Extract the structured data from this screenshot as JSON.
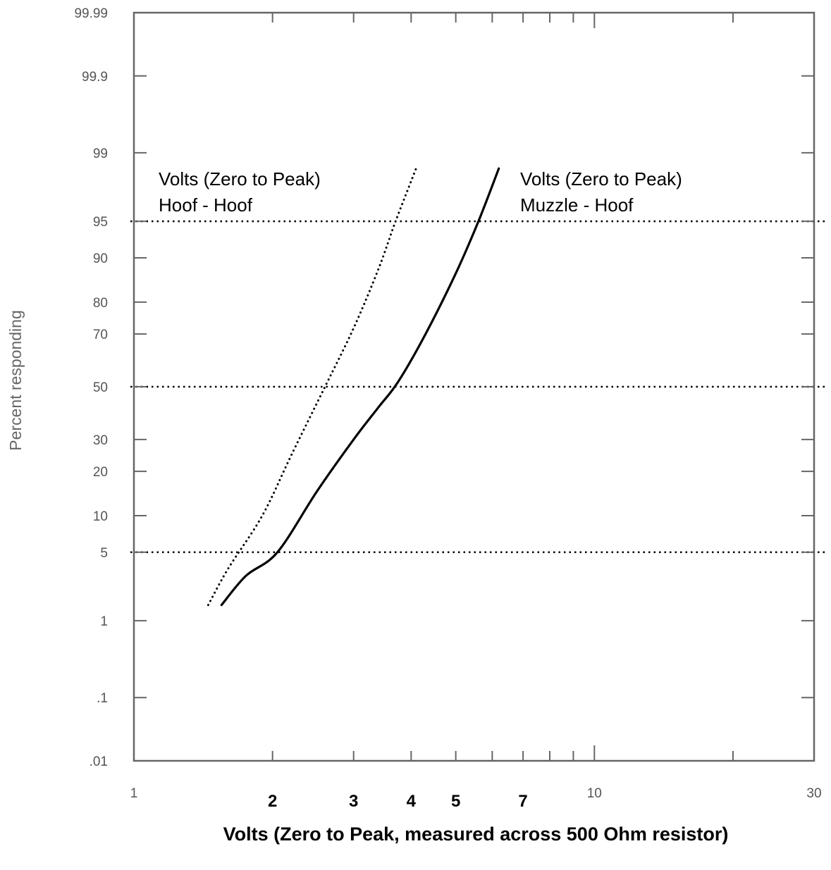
{
  "chart_data": {
    "type": "line",
    "xlabel": "Volts (Zero to Peak, measured across 500 Ohm resistor)",
    "ylabel": "Percent responding",
    "x_scale": "log",
    "y_scale": "probability",
    "xlim": [
      1,
      30
    ],
    "ylim": [
      0.01,
      99.99
    ],
    "x_ticks_outer": [
      "1",
      "10",
      "30"
    ],
    "x_ticks_bold": [
      "2",
      "3",
      "4",
      "5",
      "7"
    ],
    "y_ticks": [
      {
        "value": 0.01,
        "label": ".01"
      },
      {
        "value": 0.1,
        "label": ".1"
      },
      {
        "value": 1,
        "label": "1"
      },
      {
        "value": 5,
        "label": "5"
      },
      {
        "value": 10,
        "label": "10"
      },
      {
        "value": 20,
        "label": "20"
      },
      {
        "value": 30,
        "label": "30"
      },
      {
        "value": 50,
        "label": "50"
      },
      {
        "value": 70,
        "label": "70"
      },
      {
        "value": 80,
        "label": "80"
      },
      {
        "value": 90,
        "label": "90"
      },
      {
        "value": 95,
        "label": "95"
      },
      {
        "value": 99,
        "label": "99"
      },
      {
        "value": 99.9,
        "label": "99.9"
      },
      {
        "value": 99.99,
        "label": "99.99"
      }
    ],
    "reference_lines": [
      5,
      50,
      95
    ],
    "series": [
      {
        "style": "dotted",
        "x": [
          1.45,
          1.6,
          1.9,
          2.2,
          2.6,
          3.0,
          3.4,
          3.7,
          4.1
        ],
        "y": [
          1.5,
          3.5,
          10,
          25,
          50,
          72,
          88,
          95,
          98.5
        ]
      },
      {
        "style": "solid",
        "x": [
          1.55,
          1.75,
          2.05,
          2.5,
          3.0,
          3.4,
          3.75,
          4.3,
          5.0,
          5.6,
          6.2
        ],
        "y": [
          1.5,
          3,
          5,
          15,
          30,
          42,
          52,
          70,
          87,
          95,
          98.5
        ]
      }
    ],
    "annotations": [
      {
        "lines": [
          "Volts (Zero to  Peak)",
          "Hoof - Hoof"
        ]
      },
      {
        "lines": [
          "Volts (Zero to Peak)",
          "Muzzle - Hoof"
        ]
      }
    ]
  }
}
